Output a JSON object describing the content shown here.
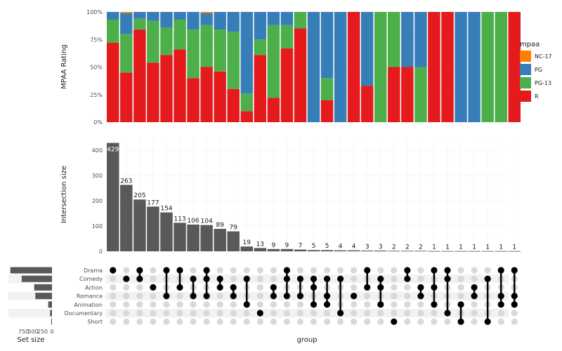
{
  "chart_data": [
    {
      "type": "stacked-bar",
      "ylabel": "MPAA Rating",
      "yticks": [
        "0%",
        "25%",
        "50%",
        "75%",
        "100%"
      ],
      "ylim": [
        0,
        100
      ],
      "legend": {
        "title": "mpaa",
        "placement": "right",
        "entries": [
          {
            "name": "NC-17",
            "color": "#FF7F00"
          },
          {
            "name": "PG",
            "color": "#377EB8"
          },
          {
            "name": "PG-13",
            "color": "#4DAF4A"
          },
          {
            "name": "R",
            "color": "#E41A1C"
          }
        ]
      },
      "series": [
        {
          "name": "R",
          "color": "#E41A1C",
          "values": [
            72,
            45,
            84,
            54,
            61,
            66,
            40,
            50,
            46,
            30,
            10,
            61,
            22,
            67,
            85,
            0,
            20,
            0,
            100,
            33,
            0,
            50,
            50,
            0,
            100,
            100,
            0,
            0,
            0,
            0,
            100
          ]
        },
        {
          "name": "PG-13",
          "color": "#4DAF4A",
          "values": [
            21,
            35,
            10,
            38,
            25,
            27,
            44,
            38,
            38,
            52,
            16,
            14,
            66,
            21,
            15,
            0,
            20,
            0,
            0,
            0,
            100,
            50,
            0,
            50,
            0,
            0,
            0,
            0,
            100,
            100,
            0
          ]
        },
        {
          "name": "PG",
          "color": "#377EB8",
          "values": [
            7,
            19,
            6,
            8,
            14,
            7,
            16,
            11,
            16,
            18,
            74,
            25,
            12,
            12,
            0,
            100,
            60,
            100,
            0,
            67,
            0,
            0,
            50,
            50,
            0,
            0,
            100,
            100,
            0,
            0,
            0
          ]
        },
        {
          "name": "NC-17",
          "color": "#FF7F00",
          "values": [
            0,
            1,
            0,
            0,
            0,
            0,
            0,
            1,
            0,
            0,
            0,
            0,
            0,
            0,
            0,
            0,
            0,
            0,
            0,
            0,
            0,
            0,
            0,
            0,
            0,
            0,
            0,
            0,
            0,
            0,
            0
          ]
        }
      ]
    },
    {
      "type": "bar",
      "ylabel": "Intersection size",
      "xlabel": "group",
      "yticks": [
        "0",
        "100",
        "200",
        "300",
        "400"
      ],
      "ylim": [
        0,
        450
      ],
      "values": [
        429,
        263,
        205,
        177,
        154,
        113,
        106,
        104,
        89,
        79,
        19,
        13,
        9,
        9,
        7,
        5,
        5,
        4,
        4,
        3,
        3,
        2,
        2,
        2,
        1,
        1,
        1,
        1,
        1,
        1,
        1
      ],
      "labels": [
        "429",
        "263",
        "205",
        "177",
        "154",
        "113",
        "106",
        "104",
        "89",
        "79",
        "19",
        "13",
        "9",
        "9",
        "7",
        "5",
        "5",
        "4",
        "4",
        "3",
        "3",
        "2",
        "2",
        "2",
        "1",
        "1",
        "1",
        "1",
        "1",
        "1",
        "1"
      ]
    },
    {
      "type": "matrix",
      "sets": [
        "Drama",
        "Comedy",
        "Action",
        "Romance",
        "Animation",
        "Documentary",
        "Short"
      ],
      "columns": [
        [
          "Drama"
        ],
        [
          "Comedy"
        ],
        [
          "Drama",
          "Comedy"
        ],
        [
          "Action"
        ],
        [
          "Drama",
          "Romance"
        ],
        [
          "Drama",
          "Action"
        ],
        [
          "Comedy",
          "Romance"
        ],
        [
          "Drama",
          "Comedy",
          "Romance"
        ],
        [
          "Action",
          "Comedy"
        ],
        [
          "Action",
          "Romance"
        ],
        [
          "Animation",
          "Comedy"
        ],
        [
          "Documentary"
        ],
        [
          "Action",
          "Romance"
        ],
        [
          "Drama",
          "Comedy",
          "Romance"
        ],
        [
          "Comedy",
          "Romance"
        ],
        [
          "Animation",
          "Action",
          "Comedy"
        ],
        [
          "Romance",
          "Animation",
          "Comedy"
        ],
        [
          "Comedy",
          "Documentary"
        ],
        [
          "Romance"
        ],
        [
          "Drama",
          "Action"
        ],
        [
          "Action",
          "Animation",
          "Comedy"
        ],
        [
          "Short"
        ],
        [
          "Drama",
          "Comedy"
        ],
        [
          "Action",
          "Romance"
        ],
        [
          "Drama",
          "Action",
          "Animation"
        ],
        [
          "Drama",
          "Comedy",
          "Documentary"
        ],
        [
          "Animation",
          "Short"
        ],
        [
          "Action",
          "Romance"
        ],
        [
          "Comedy",
          "Short"
        ],
        [
          "Drama",
          "Romance",
          "Animation"
        ],
        [
          "Drama",
          "Romance",
          "Animation"
        ]
      ]
    },
    {
      "type": "bar",
      "orientation": "horizontal",
      "xlabel": "Set size",
      "xticks": [
        "750",
        "500",
        "250",
        "0"
      ],
      "categories": [
        "Drama",
        "Comedy",
        "Action",
        "Romance",
        "Animation",
        "Documentary",
        "Short"
      ],
      "values": [
        1100,
        800,
        470,
        440,
        100,
        50,
        20
      ]
    }
  ]
}
